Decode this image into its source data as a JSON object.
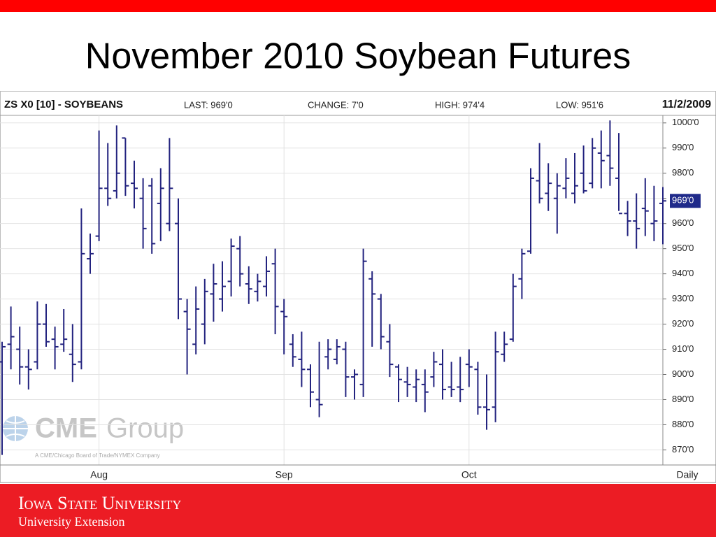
{
  "slide": {
    "title": "November 2010 Soybean Futures",
    "footer": {
      "university": "Iowa State University",
      "unit": "University Extension"
    }
  },
  "chart_data": {
    "type": "ohlc",
    "symbol": "ZS X0 [10] - SOYBEANS",
    "stats": [
      "LAST: 969'0",
      "CHANGE: 7'0",
      "HIGH: 974'4",
      "LOW: 951'6"
    ],
    "date": "11/2/2009",
    "x_label": "Daily",
    "color": "#23237f",
    "grid": true,
    "categories": [
      null,
      null,
      null,
      null,
      null,
      null,
      null,
      null,
      null,
      null,
      null,
      "Aug",
      null,
      null,
      null,
      null,
      null,
      null,
      null,
      null,
      null,
      null,
      null,
      null,
      null,
      null,
      null,
      null,
      null,
      null,
      null,
      null,
      "Sep",
      null,
      null,
      null,
      null,
      null,
      null,
      null,
      null,
      null,
      null,
      null,
      null,
      null,
      null,
      null,
      null,
      null,
      null,
      null,
      null,
      "Oct",
      null,
      null,
      null,
      null,
      null,
      null,
      null,
      null,
      null,
      null,
      null,
      null,
      null,
      null,
      null,
      null,
      null,
      null,
      null,
      null,
      null,
      null
    ],
    "open": [
      905,
      912,
      910,
      903,
      905,
      920,
      914,
      912,
      908,
      905,
      946,
      955,
      974,
      973,
      994,
      976,
      970,
      975,
      968,
      960,
      960,
      925,
      912,
      920,
      932,
      930,
      937,
      950,
      936,
      933,
      935,
      944,
      925,
      912,
      906,
      902,
      890,
      907,
      906,
      910,
      899,
      896,
      938,
      930,
      913,
      903,
      897,
      895,
      896,
      899,
      904,
      895,
      895,
      904,
      902,
      887,
      887,
      908,
      914,
      938,
      949,
      977,
      972,
      970,
      974,
      972,
      980,
      976,
      988,
      987,
      978,
      964,
      961,
      966,
      960,
      968
    ],
    "high": [
      913,
      927,
      919,
      910,
      929,
      928,
      919,
      926,
      920,
      966,
      956,
      997,
      992,
      999,
      994,
      985,
      978,
      978,
      982,
      994,
      970,
      930,
      935,
      938,
      944,
      945,
      954,
      955,
      943,
      940,
      947,
      950,
      930,
      916,
      917,
      904,
      913,
      914,
      914,
      913,
      902,
      950,
      941,
      932,
      920,
      904,
      903,
      902,
      902,
      909,
      910,
      905,
      907,
      910,
      905,
      900,
      917,
      917,
      940,
      950,
      982,
      992,
      984,
      980,
      986,
      988,
      991,
      994,
      997,
      1001,
      996,
      969,
      972,
      978,
      975,
      974.5
    ],
    "low": [
      868,
      902,
      896,
      894,
      902,
      911,
      902,
      909,
      897,
      902,
      940,
      953,
      967,
      970,
      971,
      966,
      950,
      948,
      953,
      957,
      922,
      900,
      908,
      912,
      921,
      925,
      931,
      935,
      928,
      929,
      931,
      916,
      908,
      903,
      895,
      887,
      883,
      902,
      904,
      891,
      890,
      891,
      911,
      910,
      899,
      889,
      891,
      889,
      885,
      895,
      890,
      891,
      889,
      895,
      884,
      878,
      881,
      905,
      913,
      930,
      948,
      968,
      965,
      956,
      970,
      968,
      972,
      974,
      974,
      975,
      965,
      955,
      950,
      955,
      953,
      951.75
    ],
    "close": [
      911,
      915,
      903,
      902,
      920,
      913,
      911,
      914,
      904,
      948,
      948,
      974,
      970,
      980,
      975,
      974,
      958,
      952,
      974,
      974,
      930,
      918,
      926,
      933,
      936,
      935,
      951,
      940,
      934,
      937,
      941,
      927,
      923,
      907,
      902,
      893,
      888,
      910,
      911,
      899,
      900,
      945,
      932,
      915,
      904,
      898,
      896,
      898,
      893,
      905,
      894,
      894,
      894,
      903,
      887,
      886,
      909,
      912,
      935,
      948,
      978,
      970,
      976,
      975,
      978,
      975,
      973,
      990,
      985,
      982,
      964,
      961,
      958,
      965,
      961,
      969
    ],
    "ylim": [
      864,
      1003
    ],
    "yticks": [
      {
        "value": 870,
        "label": "870'0"
      },
      {
        "value": 880,
        "label": "880'0"
      },
      {
        "value": 890,
        "label": "890'0"
      },
      {
        "value": 900,
        "label": "900'0"
      },
      {
        "value": 910,
        "label": "910'0"
      },
      {
        "value": 920,
        "label": "920'0"
      },
      {
        "value": 930,
        "label": "930'0"
      },
      {
        "value": 940,
        "label": "940'0"
      },
      {
        "value": 950,
        "label": "950'0"
      },
      {
        "value": 960,
        "label": "960'0"
      },
      {
        "value": 970,
        "label": "970'0"
      },
      {
        "value": 980,
        "label": "980'0"
      },
      {
        "value": 990,
        "label": "990'0"
      },
      {
        "value": 1000,
        "label": "1000'0"
      }
    ],
    "last_price": {
      "value": 969,
      "label": "969'0"
    },
    "watermark": {
      "brand": "CME",
      "product": "Group",
      "tagline": "A CME/Chicago Board of Trade/NYMEX Company"
    }
  }
}
